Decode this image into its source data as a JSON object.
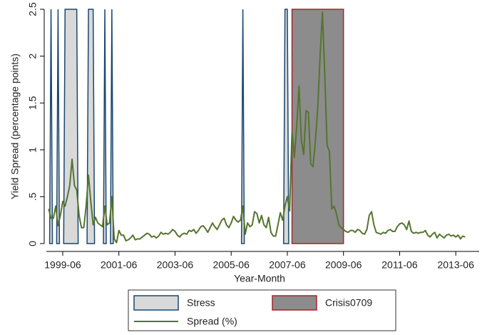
{
  "chart_data": {
    "type": "line",
    "x_label": "Year-Month",
    "y_label": "Yield Spread (percentage points)",
    "xlim": [
      "1998-11",
      "2014-04"
    ],
    "xticks": [
      "1999-06",
      "2001-06",
      "2003-06",
      "2005-06",
      "2007-06",
      "2009-06",
      "2011-06",
      "2013-06"
    ],
    "ylim": [
      0,
      2.5
    ],
    "yticks": [
      0,
      {
        "value": 0.5,
        "label": ".5"
      },
      1,
      1.5,
      2,
      2.5
    ],
    "legend": "bottom",
    "stress": {
      "name": "Stress",
      "value": 2.5,
      "color": "#d9d9d9",
      "edge": "#1a476f",
      "periods": [
        [
          "1999-01",
          "1999-01"
        ],
        [
          "1999-04",
          "1999-04"
        ],
        [
          "1999-07",
          "1999-12"
        ],
        [
          "2000-05",
          "2000-07"
        ],
        [
          "2000-12",
          "2000-12"
        ],
        [
          "2001-03",
          "2001-03"
        ],
        [
          "2005-11",
          "2005-11"
        ],
        [
          "2007-05",
          "2007-06"
        ]
      ]
    },
    "crisis": {
      "name": "Crisis0709",
      "value": 2.5,
      "color": "#8c8c8c",
      "edge": "#a8242c",
      "period": [
        "2007-08",
        "2009-06"
      ]
    },
    "x": [
      "1998-12",
      "1999-01",
      "1999-02",
      "1999-03",
      "1999-04",
      "1999-05",
      "1999-06",
      "1999-07",
      "1999-08",
      "1999-09",
      "1999-10",
      "1999-11",
      "1999-12",
      "2000-01",
      "2000-02",
      "2000-03",
      "2000-04",
      "2000-05",
      "2000-06",
      "2000-07",
      "2000-08",
      "2000-09",
      "2000-10",
      "2000-11",
      "2000-12",
      "2001-01",
      "2001-02",
      "2001-03",
      "2001-04",
      "2001-05",
      "2001-06",
      "2001-07",
      "2001-08",
      "2001-09",
      "2001-10",
      "2001-11",
      "2001-12",
      "2002-01",
      "2002-02",
      "2002-03",
      "2002-04",
      "2002-05",
      "2002-06",
      "2002-07",
      "2002-08",
      "2002-09",
      "2002-10",
      "2002-11",
      "2002-12",
      "2003-01",
      "2003-02",
      "2003-03",
      "2003-04",
      "2003-05",
      "2003-06",
      "2003-07",
      "2003-08",
      "2003-09",
      "2003-10",
      "2003-11",
      "2003-12",
      "2004-01",
      "2004-02",
      "2004-03",
      "2004-04",
      "2004-05",
      "2004-06",
      "2004-07",
      "2004-08",
      "2004-09",
      "2004-10",
      "2004-11",
      "2004-12",
      "2005-01",
      "2005-02",
      "2005-03",
      "2005-04",
      "2005-05",
      "2005-06",
      "2005-07",
      "2005-08",
      "2005-09",
      "2005-10",
      "2005-11",
      "2005-12",
      "2006-01",
      "2006-02",
      "2006-03",
      "2006-04",
      "2006-05",
      "2006-06",
      "2006-07",
      "2006-08",
      "2006-09",
      "2006-10",
      "2006-11",
      "2006-12",
      "2007-01",
      "2007-02",
      "2007-03",
      "2007-04",
      "2007-05",
      "2007-06",
      "2007-07",
      "2007-08",
      "2007-09",
      "2007-10",
      "2007-11",
      "2007-12",
      "2008-01",
      "2008-02",
      "2008-03",
      "2008-04",
      "2008-05",
      "2008-06",
      "2008-07",
      "2008-08",
      "2008-09",
      "2008-10",
      "2008-11",
      "2008-12",
      "2009-01",
      "2009-02",
      "2009-03",
      "2009-04",
      "2009-05",
      "2009-06",
      "2009-07",
      "2009-08",
      "2009-09",
      "2009-10",
      "2009-11",
      "2009-12",
      "2010-01",
      "2010-02",
      "2010-03",
      "2010-04",
      "2010-05",
      "2010-06",
      "2010-07",
      "2010-08",
      "2010-09",
      "2010-10",
      "2010-11",
      "2010-12",
      "2011-01",
      "2011-02",
      "2011-03",
      "2011-04",
      "2011-05",
      "2011-06",
      "2011-07",
      "2011-08",
      "2011-09",
      "2011-10",
      "2011-11",
      "2011-12",
      "2012-01",
      "2012-02",
      "2012-03",
      "2012-04",
      "2012-05",
      "2012-06",
      "2012-07",
      "2012-08",
      "2012-09",
      "2012-10",
      "2012-11",
      "2012-12",
      "2013-01",
      "2013-02",
      "2013-03",
      "2013-04",
      "2013-05",
      "2013-06",
      "2013-07",
      "2013-08",
      "2013-09",
      "2013-10"
    ],
    "series": [
      {
        "name": "Spread (%)",
        "color": "#55752f",
        "values": [
          0.37,
          0.27,
          0.27,
          0.4,
          0.19,
          0.3,
          0.45,
          0.4,
          0.5,
          0.62,
          0.9,
          0.62,
          0.57,
          0.3,
          0.17,
          0.17,
          0.4,
          0.73,
          0.45,
          0.2,
          0.28,
          0.22,
          0.2,
          0.18,
          0.4,
          0.2,
          0.22,
          0.5,
          0.05,
          0.01,
          0.14,
          0.09,
          0.09,
          0.03,
          0.04,
          0.06,
          0.09,
          0.04,
          0.05,
          0.05,
          0.07,
          0.09,
          0.11,
          0.1,
          0.07,
          0.08,
          0.06,
          0.08,
          0.12,
          0.1,
          0.11,
          0.1,
          0.12,
          0.15,
          0.13,
          0.09,
          0.07,
          0.1,
          0.11,
          0.1,
          0.14,
          0.13,
          0.15,
          0.11,
          0.14,
          0.18,
          0.19,
          0.16,
          0.12,
          0.17,
          0.22,
          0.18,
          0.15,
          0.2,
          0.25,
          0.27,
          0.2,
          0.17,
          0.22,
          0.29,
          0.25,
          0.23,
          0.25,
          0.4,
          0.1,
          0.22,
          0.18,
          0.2,
          0.34,
          0.32,
          0.22,
          0.3,
          0.2,
          0.17,
          0.28,
          0.12,
          0.08,
          0.08,
          0.2,
          0.33,
          0.25,
          0.4,
          0.5,
          0.35,
          1.2,
          0.92,
          1.25,
          1.68,
          1.1,
          0.95,
          1.42,
          1.4,
          0.85,
          0.82,
          1.1,
          1.45,
          2.0,
          2.47,
          1.8,
          1.05,
          0.98,
          0.37,
          0.4,
          0.32,
          0.2,
          0.17,
          0.15,
          0.13,
          0.12,
          0.14,
          0.14,
          0.12,
          0.15,
          0.14,
          0.11,
          0.1,
          0.15,
          0.3,
          0.34,
          0.2,
          0.12,
          0.11,
          0.1,
          0.12,
          0.11,
          0.14,
          0.15,
          0.13,
          0.13,
          0.18,
          0.21,
          0.22,
          0.2,
          0.15,
          0.24,
          0.13,
          0.11,
          0.12,
          0.11,
          0.12,
          0.12,
          0.14,
          0.09,
          0.07,
          0.1,
          0.12,
          0.06,
          0.1,
          0.08,
          0.06,
          0.09,
          0.1,
          0.08,
          0.09,
          0.07,
          0.09,
          0.05,
          0.08,
          0.07
        ]
      }
    ]
  }
}
